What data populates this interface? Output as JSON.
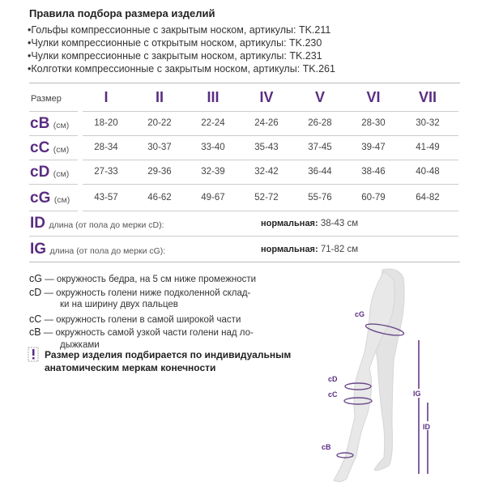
{
  "title": "Правила подбора размера изделий",
  "products": [
    "•Гольфы компрессионные с закрытым носком, артикулы: TK.211",
    "•Чулки компрессионные с открытым носком, артикулы: TK.230",
    "•Чулки компрессионные с закрытым носком, артикулы: TK.231",
    "•Колготки компрессионные с закрытым носком, артикулы: TK.261"
  ],
  "table": {
    "size_label": "Размер",
    "sizes": [
      "I",
      "II",
      "III",
      "IV",
      "V",
      "VI",
      "VII"
    ],
    "unit": "(см)",
    "rows": [
      {
        "code": "cB",
        "values": [
          "18-20",
          "20-22",
          "22-24",
          "24-26",
          "26-28",
          "28-30",
          "30-32"
        ]
      },
      {
        "code": "cC",
        "values": [
          "28-34",
          "30-37",
          "33-40",
          "35-43",
          "37-45",
          "39-47",
          "41-49"
        ]
      },
      {
        "code": "cD",
        "values": [
          "27-33",
          "29-36",
          "32-39",
          "32-42",
          "36-44",
          "38-46",
          "40-48"
        ]
      },
      {
        "code": "cG",
        "values": [
          "43-57",
          "46-62",
          "49-67",
          "52-72",
          "55-76",
          "60-79",
          "64-82"
        ]
      }
    ],
    "lengths": [
      {
        "code": "ID",
        "desc": "длина (от пола до мерки cD):",
        "norm_label": "нормальная:",
        "value": "38-43 см"
      },
      {
        "code": "IG",
        "desc": "длина (от пола до мерки cG):",
        "norm_label": "нормальная:",
        "value": "71-82 см"
      }
    ]
  },
  "legend": [
    {
      "code": "cG",
      "text": "— окружность бедра, на 5 см ниже промежности"
    },
    {
      "code": "cD",
      "text": "— окружность голени ниже подколенной склад-",
      "cont": "ки на ширину двух пальцев"
    },
    {
      "code": "cC",
      "text": "— окружность голени в самой широкой части"
    },
    {
      "code": "cB",
      "text": "— окружность самой узкой части голени над ло-",
      "cont": "дыжками"
    }
  ],
  "warning": {
    "icon": "exclamation-icon",
    "line1": "Размер изделия подбирается по индивидуальным",
    "line2": "анатомическим меркам конечности"
  },
  "figure": {
    "labels": [
      "cG",
      "cD",
      "cC",
      "cB",
      "IG",
      "ID"
    ]
  },
  "colors": {
    "accent": "#5a2d82",
    "leg": "#e3e3e3"
  }
}
